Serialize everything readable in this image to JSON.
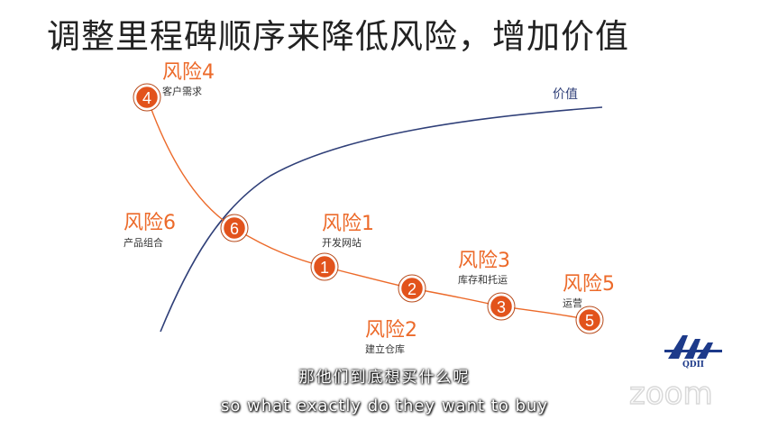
{
  "title": "调整里程碑顺序来降低风险，增加价值",
  "value_curve_label": "价值",
  "milestones": [
    {
      "number": "4",
      "risk": "风险4",
      "label": "客户需求"
    },
    {
      "number": "6",
      "risk": "风险6",
      "label": "产品组合"
    },
    {
      "number": "1",
      "risk": "风险1",
      "label": "开发网站"
    },
    {
      "number": "2",
      "risk": "风险2",
      "label": "建立仓库"
    },
    {
      "number": "3",
      "risk": "风险3",
      "label": "库存和托运"
    },
    {
      "number": "5",
      "risk": "风险5",
      "label": "运营"
    }
  ],
  "subtitle": {
    "chinese": "那他们到底想买什么呢",
    "english": "so what exactly do they want to buy"
  },
  "logo_text": "QDII",
  "watermark": "zoom",
  "colors": {
    "risk_orange": "#ec6a2a",
    "marker_fill": "#e2531c",
    "value_curve": "#2f3f78",
    "logo_blue": "#1d3a8a"
  }
}
